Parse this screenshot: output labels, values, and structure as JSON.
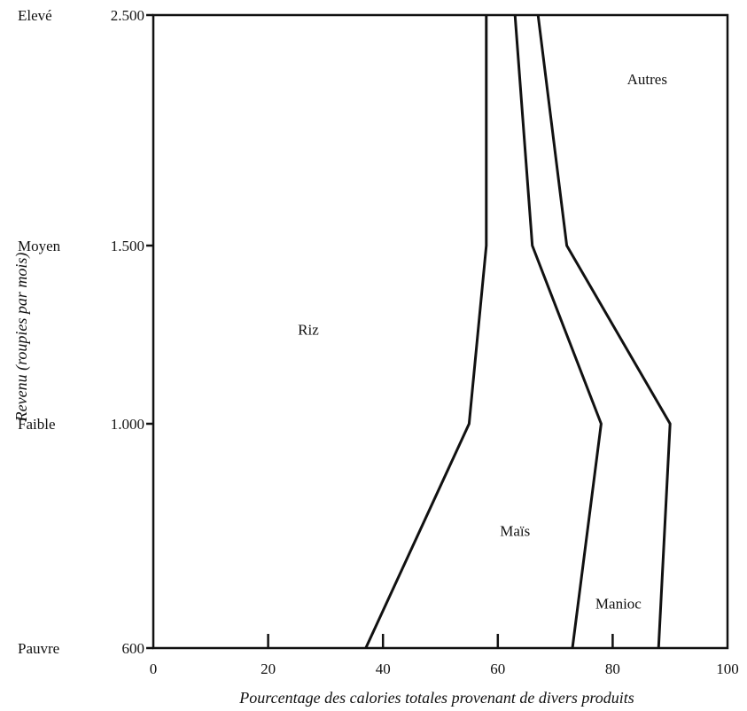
{
  "chart_data": {
    "type": "area",
    "title": "",
    "xlabel": "Pourcentage des calories totales provenant de divers produits",
    "ylabel": "Revenu (roupies par mois)",
    "xlim": [
      0,
      100
    ],
    "ylim": [
      600,
      2500
    ],
    "x_ticks": [
      {
        "value": 0,
        "label": "0"
      },
      {
        "value": 20,
        "label": "20"
      },
      {
        "value": 40,
        "label": "40"
      },
      {
        "value": 60,
        "label": "60"
      },
      {
        "value": 80,
        "label": "80"
      },
      {
        "value": 100,
        "label": "100"
      }
    ],
    "y_ticks": [
      {
        "value": 600,
        "label": "600",
        "level": "Pauvre"
      },
      {
        "value": 1000,
        "label": "1.000",
        "level": "Faible"
      },
      {
        "value": 1500,
        "label": "1.500",
        "level": "Moyen"
      },
      {
        "value": 2500,
        "label": "2.500",
        "level": "Elevé"
      }
    ],
    "grid": false,
    "boundaries": [
      {
        "between": "Riz / Maïs",
        "points": [
          {
            "x": 37,
            "y": 600
          },
          {
            "x": 55,
            "y": 1000
          },
          {
            "x": 58,
            "y": 1500
          },
          {
            "x": 58,
            "y": 2500
          }
        ]
      },
      {
        "between": "Maïs / Manioc",
        "points": [
          {
            "x": 73,
            "y": 600
          },
          {
            "x": 78,
            "y": 1000
          },
          {
            "x": 66,
            "y": 1500
          },
          {
            "x": 63,
            "y": 2500
          }
        ]
      },
      {
        "between": "Manioc / Autres",
        "points": [
          {
            "x": 88,
            "y": 600
          },
          {
            "x": 90,
            "y": 1000
          },
          {
            "x": 72,
            "y": 1500
          },
          {
            "x": 67,
            "y": 2500
          }
        ]
      }
    ],
    "regions": [
      {
        "label": "Riz",
        "x": 27,
        "y": 1250
      },
      {
        "label": "Maïs",
        "x": 63,
        "y": 800
      },
      {
        "label": "Manioc",
        "x": 81,
        "y": 670
      },
      {
        "label": "Autres",
        "x": 86,
        "y": 2200
      }
    ]
  }
}
